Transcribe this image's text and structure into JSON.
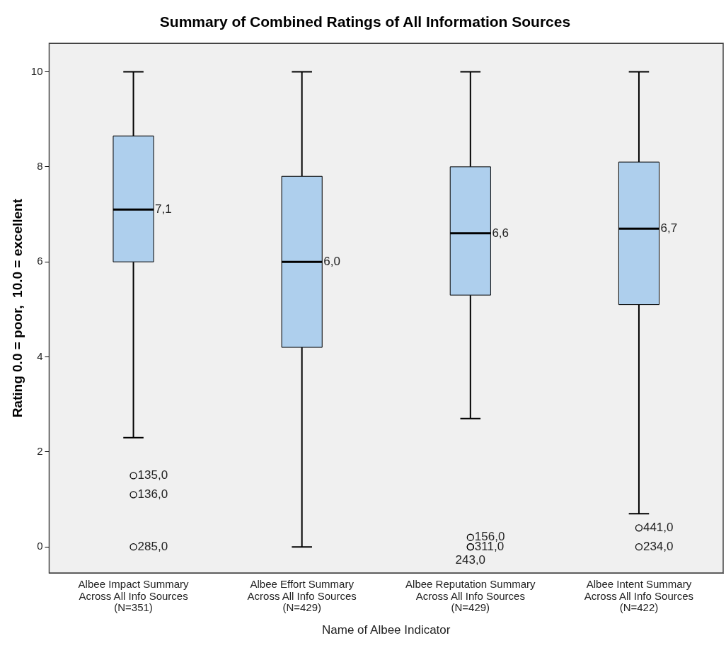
{
  "chart_data": {
    "type": "box",
    "title": "Summary of Combined Ratings of All Information Sources",
    "xlabel": "Name of Albee Indicator",
    "ylabel": "Rating 0.0 = poor,  10.0 = excellent",
    "categories": [
      "Albee Impact Summary\nAcross All Info Sources\n(N=351)",
      "Albee Effort Summary\nAcross All Info Sources\n(N=429)",
      "Albee Reputation Summary\nAcross All Info Sources\n(N=429)",
      "Albee Intent Summary\nAcross All Info Sources\n(N=422)"
    ],
    "color": "#aecfed",
    "boxes": [
      {
        "low": 2.3,
        "q1": 6.0,
        "median": 7.1,
        "q3": 8.65,
        "high": 10
      },
      {
        "low": 0,
        "q1": 4.2,
        "median": 6.0,
        "q3": 7.8,
        "high": 10
      },
      {
        "low": 2.7,
        "q1": 5.3,
        "median": 6.6,
        "q3": 8.0,
        "high": 10
      },
      {
        "low": 0.7,
        "q1": 5.1,
        "median": 6.7,
        "q3": 8.1,
        "high": 10
      }
    ],
    "series": [
      {
        "type": "scatter",
        "color": "#000000",
        "marker": "circle",
        "x": [
          "Albee Impact Summary\nAcross All Info Sources\n(N=351)",
          "Albee Impact Summary\nAcross All Info Sources\n(N=351)",
          "Albee Impact Summary\nAcross All Info Sources\n(N=351)",
          "Albee Reputation Summary\nAcross All Info Sources\n(N=429)",
          "Albee Reputation Summary\nAcross All Info Sources\n(N=429)",
          "Albee Reputation Summary\nAcross All Info Sources\n(N=429)",
          "Albee Intent Summary\nAcross All Info Sources\n(N=422)",
          "Albee Intent Summary\nAcross All Info Sources\n(N=422)"
        ],
        "values": [
          1.5,
          1.1,
          0,
          0.2,
          0,
          0,
          0.4,
          0
        ]
      }
    ],
    "ylim": [
      -0.55,
      10.6
    ],
    "yticks": [
      0,
      2,
      4,
      6,
      8,
      10
    ],
    "grid": false,
    "legend": false,
    "annotations": [
      {
        "text": "7,1",
        "x": "Albee Impact Summary\nAcross All Info Sources\n(N=351)",
        "y": 7.1
      },
      {
        "text": "6,0",
        "x": "Albee Effort Summary\nAcross All Info Sources\n(N=429)",
        "y": 6.0
      },
      {
        "text": "6,6",
        "x": "Albee Reputation Summary\nAcross All Info Sources\n(N=429)",
        "y": 6.6
      },
      {
        "text": "6,7",
        "x": "Albee Intent Summary\nAcross All Info Sources\n(N=422)",
        "y": 6.7
      },
      {
        "text": "135,0",
        "x": "Albee Impact Summary\nAcross All Info Sources\n(N=351)",
        "y": 1.5
      },
      {
        "text": "136,0",
        "x": "Albee Impact Summary\nAcross All Info Sources\n(N=351)",
        "y": 1.1
      },
      {
        "text": "285,0",
        "x": "Albee Impact Summary\nAcross All Info Sources\n(N=351)",
        "y": 0
      },
      {
        "text": "156,0",
        "x": "Albee Reputation Summary\nAcross All Info Sources\n(N=429)",
        "y": 0.2
      },
      {
        "text": "243,0",
        "x": "Albee Reputation Summary\nAcross All Info Sources\n(N=429)",
        "y": 0
      },
      {
        "text": "311,0",
        "x": "Albee Reputation Summary\nAcross All Info Sources\n(N=429)",
        "y": 0
      },
      {
        "text": "441,0",
        "x": "Albee Intent Summary\nAcross All Info Sources\n(N=422)",
        "y": 0.4
      },
      {
        "text": "234,0",
        "x": "Albee Intent Summary\nAcross All Info Sources\n(N=422)",
        "y": 0
      }
    ]
  }
}
